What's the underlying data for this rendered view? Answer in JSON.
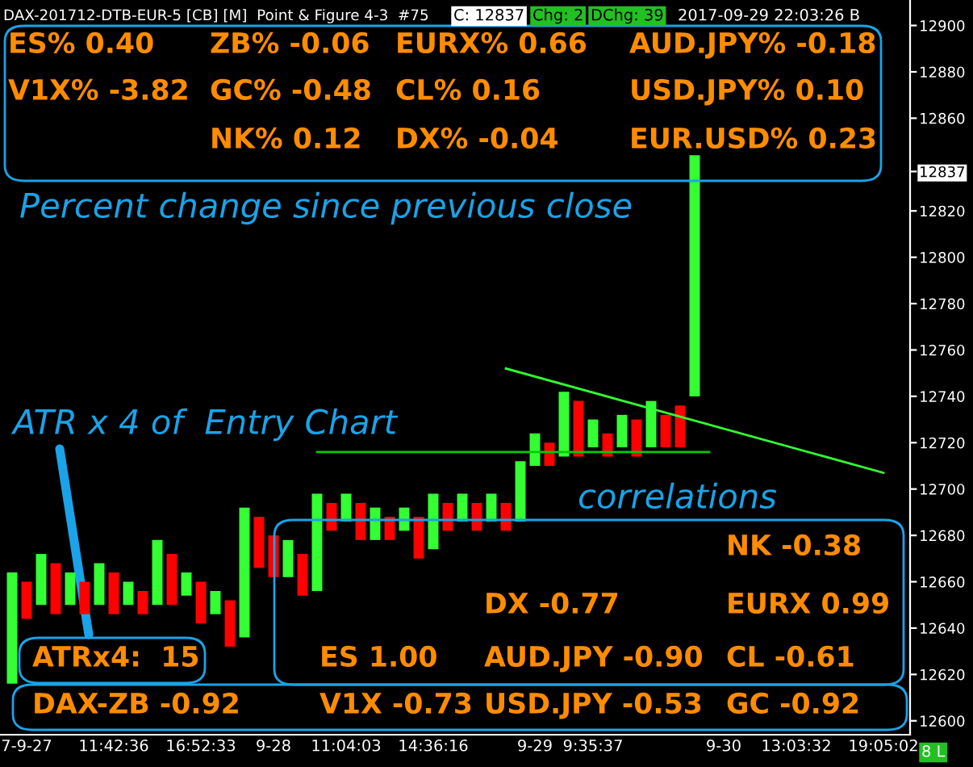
{
  "chart_data": {
    "type": "bar",
    "title": "DAX-201712-DTB-EUR-5 [CB] [M]  Point & Figure 4-3  #75",
    "categories": [
      null,
      "7-9-27",
      null,
      null,
      null,
      null,
      null,
      "11:42:36",
      null,
      null,
      null,
      null,
      null,
      "16:52:33",
      null,
      null,
      null,
      null,
      "9-28",
      null,
      null,
      null,
      null,
      "11:04:03",
      null,
      null,
      null,
      null,
      null,
      "14:36:16",
      null,
      null,
      null,
      null,
      null,
      null,
      "9-29",
      null,
      null,
      null,
      "9:35:37",
      null,
      null,
      null,
      null,
      null,
      null,
      null,
      null,
      "9-30",
      null,
      null,
      null,
      null,
      "13:03:32",
      null,
      null,
      null,
      null,
      null,
      "19:05:02"
    ],
    "series": [
      {
        "values": [
          48,
          16,
          22,
          22,
          14,
          14,
          18,
          18,
          10,
          10,
          28,
          22,
          10,
          18,
          10,
          20,
          56,
          22,
          18,
          16,
          18,
          42,
          12,
          12,
          16,
          14,
          10,
          10,
          18,
          24,
          12,
          12,
          12,
          12,
          12,
          26,
          14,
          10,
          28,
          24,
          12,
          10,
          14,
          16,
          20,
          14,
          18,
          104,
          null,
          null,
          null,
          null,
          null,
          null,
          null,
          null,
          null,
          null,
          null,
          null,
          null
        ],
        "base": [
          12616,
          12644,
          12650,
          12646,
          12650,
          12646,
          12650,
          12646,
          12650,
          12646,
          12650,
          12650,
          12654,
          12642,
          12646,
          12632,
          12636,
          12666,
          12662,
          12662,
          12654,
          12656,
          12682,
          12686,
          12678,
          12678,
          12678,
          12682,
          12670,
          12674,
          12682,
          12686,
          12682,
          12686,
          12682,
          12686,
          12710,
          12710,
          12714,
          12714,
          12718,
          12714,
          12718,
          12714,
          12718,
          12718,
          12718,
          12740,
          null,
          null,
          null,
          null,
          null,
          null,
          null,
          null,
          null,
          null,
          null,
          null,
          null
        ],
        "colors": [
          "#33ff33",
          "#ff0000",
          "#33ff33",
          "#ff0000",
          "#33ff33",
          "#ff0000",
          "#33ff33",
          "#ff0000",
          "#33ff33",
          "#ff0000",
          "#33ff33",
          "#ff0000",
          "#33ff33",
          "#ff0000",
          "#33ff33",
          "#ff0000",
          "#33ff33",
          "#ff0000",
          "#ff0000",
          "#33ff33",
          "#ff0000",
          "#33ff33",
          "#ff0000",
          "#33ff33",
          "#ff0000",
          "#33ff33",
          "#ff0000",
          "#33ff33",
          "#ff0000",
          "#33ff33",
          "#ff0000",
          "#33ff33",
          "#ff0000",
          "#33ff33",
          "#ff0000",
          "#33ff33",
          "#33ff33",
          "#ff0000",
          "#33ff33",
          "#ff0000",
          "#33ff33",
          "#ff0000",
          "#33ff33",
          "#ff0000",
          "#33ff33",
          "#ff0000",
          "#ff0000",
          "#33ff33",
          "#33ff33",
          "#33ff33",
          "#33ff33",
          "#33ff33",
          "#33ff33",
          "#33ff33",
          "#33ff33",
          "#33ff33",
          "#33ff33",
          "#33ff33",
          "#33ff33",
          "#33ff33",
          "#33ff33"
        ]
      },
      {
        "type": "line",
        "values": [
          null,
          null,
          null,
          null,
          null,
          null,
          null,
          null,
          null,
          null,
          null,
          null,
          null,
          null,
          null,
          null,
          null,
          null,
          null,
          null,
          null,
          12716,
          null,
          null,
          null,
          null,
          null,
          null,
          null,
          null,
          null,
          null,
          null,
          null,
          null,
          null,
          null,
          null,
          null,
          null,
          null,
          null,
          null,
          null,
          null,
          null,
          null,
          null,
          12716,
          null,
          null,
          null,
          null,
          null,
          null,
          null,
          null,
          null,
          null,
          null,
          null
        ],
        "color": "#00cc00"
      },
      {
        "type": "line",
        "values": [
          null,
          null,
          null,
          null,
          null,
          null,
          null,
          null,
          null,
          null,
          null,
          null,
          null,
          null,
          null,
          null,
          null,
          null,
          null,
          null,
          null,
          null,
          null,
          null,
          null,
          null,
          null,
          null,
          null,
          null,
          null,
          null,
          null,
          null,
          12752,
          null,
          null,
          null,
          null,
          null,
          null,
          null,
          null,
          null,
          null,
          null,
          null,
          null,
          null,
          null,
          null,
          null,
          null,
          null,
          null,
          null,
          null,
          null,
          null,
          null,
          12707
        ],
        "color": "#33ff33"
      }
    ],
    "ylim": [
      12594,
      12911
    ],
    "yticks": [
      12600,
      12620,
      12640,
      12660,
      12680,
      12700,
      12720,
      12740,
      12760,
      12780,
      12800,
      12820,
      {
        "value": 12837,
        "label": "12837"
      },
      12860,
      12880,
      12900
    ],
    "grid": false,
    "legend": false,
    "annotations": [
      "C: 12837",
      "Chg: 2",
      "DChg: 39",
      "2017-09-29 22:03:26 B",
      "ES% 0.40",
      "ZB% -0.06",
      "EURX% 0.66",
      "AUD.JPY% -0.18",
      "V1X% -3.82",
      "GC% -0.48",
      "CL% 0.16",
      "USD.JPY% 0.10",
      "NK% 0.12",
      "DX% -0.04",
      "EUR.USD% 0.23",
      "Percent change since previous close",
      "ATR x 4 of  Entry Chart",
      "correlations",
      "NK -0.38",
      "DX -0.77",
      "EURX 0.99",
      "ATRx4:  15",
      "ES 1.00",
      "AUD.JPY -0.90",
      "CL -0.61",
      "DAX-ZB -0.92",
      "V1X -0.73",
      "USD.JPY -0.53",
      "GC -0.92",
      "8 L"
    ]
  }
}
